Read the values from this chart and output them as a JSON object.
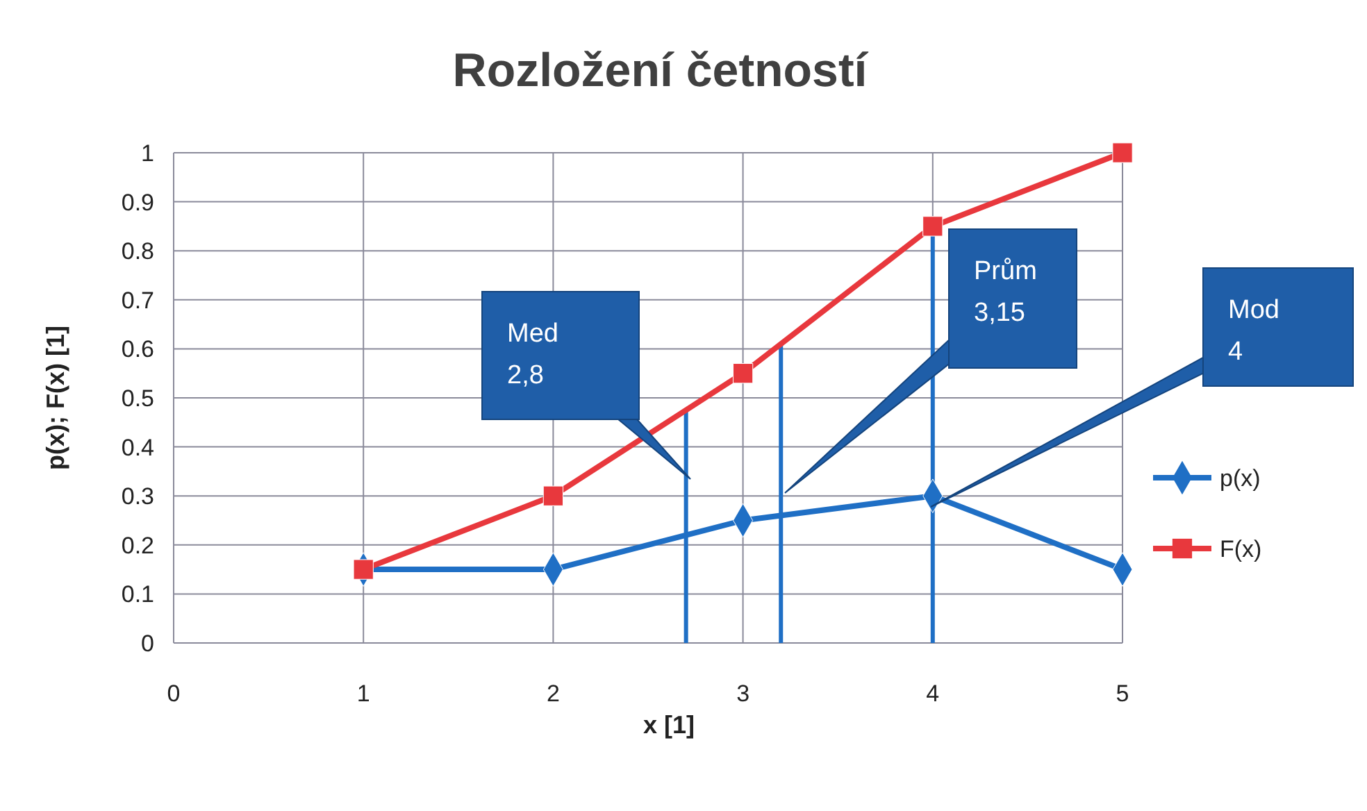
{
  "chart_data": {
    "type": "line",
    "title": "Rozložení četností",
    "xlabel": "x [1]",
    "ylabel": "p(x); F(x) [1]",
    "x": [
      1,
      2,
      3,
      4,
      5
    ],
    "series": [
      {
        "name": "p(x)",
        "color": "#1f6fc5",
        "values": [
          0.15,
          0.15,
          0.25,
          0.3,
          0.15
        ],
        "marker": "diamond"
      },
      {
        "name": "F(x)",
        "color": "#e8383d",
        "values": [
          0.15,
          0.3,
          0.55,
          0.85,
          1
        ],
        "marker": "square"
      }
    ],
    "xlim": [
      0,
      5
    ],
    "xticks": [
      0,
      1,
      2,
      3,
      4,
      5
    ],
    "ylim": [
      0,
      1
    ],
    "yticks": [
      0,
      0.1,
      0.2,
      0.3,
      0.4,
      0.5,
      0.6,
      0.7,
      0.8,
      0.9,
      1
    ],
    "grid": true,
    "legend": "right",
    "line_style": "solid",
    "ref_lines": [
      {
        "axis": "x",
        "value": 2.7,
        "color": "#1f6fc5"
      },
      {
        "axis": "x",
        "value": 3.2,
        "color": "#1f6fc5"
      },
      {
        "axis": "x",
        "value": 4,
        "color": "#1f6fc5"
      }
    ],
    "annotations": [
      "Med\n2,8",
      "Prům\n3,15",
      "Mod\n4"
    ]
  }
}
